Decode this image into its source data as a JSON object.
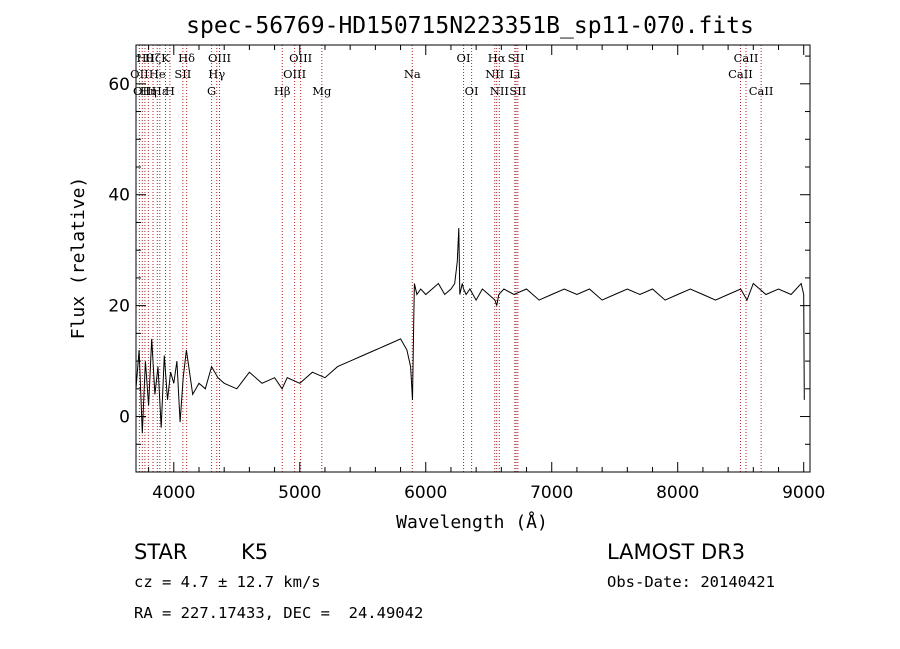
{
  "chart_data": {
    "type": "line",
    "title": "spec-56769-HD150715N223351B_sp11-070.fits",
    "xlabel": "Wavelength (Å)",
    "ylabel": "Flux (relative)",
    "xlim": [
      3700,
      9050
    ],
    "ylim": [
      -10,
      67
    ],
    "x_ticks": [
      4000,
      5000,
      6000,
      7000,
      8000,
      9000
    ],
    "y_ticks": [
      0,
      20,
      40,
      60
    ],
    "grid": false,
    "series": [
      {
        "x": [
          3700,
          3725,
          3750,
          3775,
          3800,
          3825,
          3850,
          3875,
          3900,
          3925,
          3950,
          3975,
          4000,
          4025,
          4050,
          4075,
          4100,
          4150,
          4200,
          4250,
          4300,
          4350,
          4400,
          4500,
          4600,
          4700,
          4800,
          4860,
          4900,
          5000,
          5100,
          5200,
          5300,
          5400,
          5500,
          5600,
          5700,
          5800,
          5850,
          5880,
          5895,
          5905,
          5910,
          5930,
          5960,
          6000,
          6050,
          6100,
          6150,
          6200,
          6230,
          6250,
          6262,
          6270,
          6290,
          6300,
          6320,
          6350,
          6400,
          6450,
          6500,
          6550,
          6563,
          6580,
          6620,
          6700,
          6800,
          6900,
          7000,
          7100,
          7200,
          7300,
          7400,
          7500,
          7600,
          7700,
          7800,
          7900,
          8000,
          8100,
          8200,
          8300,
          8400,
          8500,
          8550,
          8600,
          8700,
          8800,
          8900,
          8980,
          9000,
          9005
        ],
        "y": [
          5,
          12,
          -3,
          10,
          2,
          14,
          4,
          9,
          -2,
          11,
          3,
          8,
          6,
          10,
          -1,
          7,
          12,
          4,
          6,
          5,
          9,
          7,
          6,
          5,
          8,
          6,
          7,
          5,
          7,
          6,
          8,
          7,
          9,
          10,
          11,
          12,
          13,
          14,
          12,
          9,
          3,
          18,
          24,
          22,
          23,
          22,
          23,
          24,
          22,
          23,
          24,
          28,
          34,
          22,
          24,
          23,
          22,
          23,
          21,
          23,
          22,
          21,
          20,
          22,
          23,
          22,
          23,
          21,
          22,
          23,
          22,
          23,
          21,
          22,
          23,
          22,
          23,
          21,
          22,
          23,
          22,
          21,
          22,
          23,
          21,
          24,
          22,
          23,
          22,
          24,
          22,
          3
        ]
      }
    ],
    "spectral_lines": [
      {
        "x": 3727,
        "label": "OII",
        "row": 2
      },
      {
        "x": 3750,
        "label": "OII",
        "row": 3
      },
      {
        "x": 3771,
        "label": "Hθ",
        "row": 1
      },
      {
        "x": 3798,
        "label": "Hη",
        "row": 3
      },
      {
        "x": 3835,
        "label": "Hζ",
        "row": 1
      },
      {
        "x": 3869,
        "label": "He",
        "row": 2
      },
      {
        "x": 3889,
        "label": "Hε",
        "row": 3
      },
      {
        "x": 3934,
        "label": "K",
        "row": 1
      },
      {
        "x": 3969,
        "label": "H",
        "row": 3
      },
      {
        "x": 4072,
        "label": "SII",
        "row": 2
      },
      {
        "x": 4102,
        "label": "Hδ",
        "row": 1
      },
      {
        "x": 4300,
        "label": "G",
        "row": 3
      },
      {
        "x": 4341,
        "label": "Hγ",
        "row": 2
      },
      {
        "x": 4363,
        "label": "OIII",
        "row": 1
      },
      {
        "x": 4861,
        "label": "Hβ",
        "row": 3
      },
      {
        "x": 4959,
        "label": "OIII",
        "row": 2
      },
      {
        "x": 5007,
        "label": "OIII",
        "row": 1
      },
      {
        "x": 5175,
        "label": "Mg",
        "row": 3
      },
      {
        "x": 5893,
        "label": "Na",
        "row": 2
      },
      {
        "x": 6300,
        "label": "OI",
        "row": 1
      },
      {
        "x": 6364,
        "label": "OI",
        "row": 3
      },
      {
        "x": 6548,
        "label": "NII",
        "row": 2
      },
      {
        "x": 6563,
        "label": "Hα",
        "row": 1
      },
      {
        "x": 6584,
        "label": "NII",
        "row": 3
      },
      {
        "x": 6707,
        "label": "Li",
        "row": 2
      },
      {
        "x": 6717,
        "label": "SII",
        "row": 1
      },
      {
        "x": 6731,
        "label": "SII",
        "row": 3
      },
      {
        "x": 8498,
        "label": "CaII",
        "row": 2
      },
      {
        "x": 8542,
        "label": "CaII",
        "row": 1
      },
      {
        "x": 8662,
        "label": "CaII",
        "row": 3
      }
    ]
  },
  "info": {
    "object_type": "STAR",
    "subclass": "K5",
    "survey": "LAMOST DR3",
    "redshift": "cz = 4.7 ± 12.7 km/s",
    "obs_date": "Obs-Date: 20140421",
    "coordinates": "RA = 227.17433, DEC =  24.49042"
  },
  "colors": {
    "spectrum": "#000000",
    "line_marker": "#b22222",
    "axes": "#000000",
    "background": "#ffffff"
  }
}
